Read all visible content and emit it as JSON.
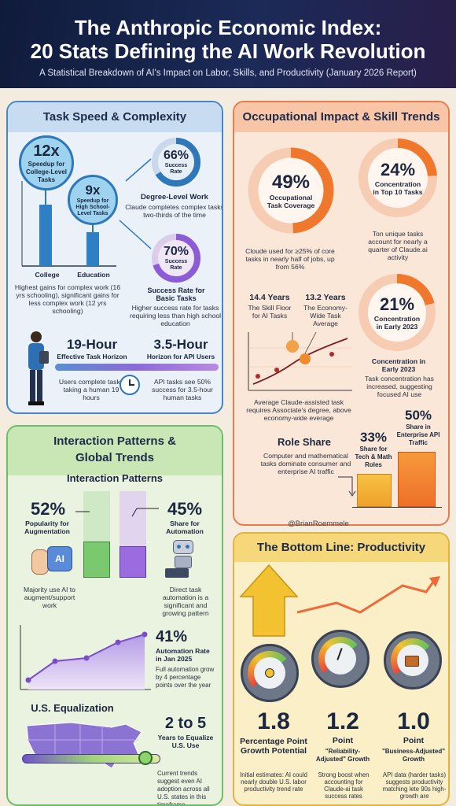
{
  "header": {
    "title_line1": "The Anthropic Economic Index:",
    "title_line2": "20 Stats Defining the AI Work Revolution",
    "subtitle": "A Statistical Breakdown of AI's Impact on Labor, Skills, and Productivity (January 2026 Report)"
  },
  "speed": {
    "title": "Task Speed & Complexity",
    "college_value": "12x",
    "college_label": "Speedup for College-Level Tasks",
    "hs_value": "9x",
    "hs_label": "Speedup for High School-Level Tasks",
    "bar_label_college": "College",
    "bar_label_education": "Education",
    "gains_note": "Highest gains for complex work (16 yrs schooling), significant gains for less complex work (12 yrs schooling)",
    "degree_value": "66%",
    "degree_ring_label": "Success Rate",
    "degree_title": "Degree-Level Work",
    "degree_note": "Claude completes complex tasks two-thirds of the time",
    "basic_value": "70%",
    "basic_ring_label": "Success Rate",
    "basic_title": "Success Rate for Basic Tasks",
    "basic_note": "Higher success rate for tasks requiring less than high school education",
    "horizon_value": "19-Hour",
    "horizon_label": "Effective Task Horizon",
    "horizon_note": "Users complete tasks taking a human 19 hours",
    "api_value": "3.5-Hour",
    "api_label": "Horizon for API Users",
    "api_note": "API tasks see 50% success for 3.5-hour human tasks",
    "degree_level": 0.66,
    "basic_level": 0.7
  },
  "occupational": {
    "title": "Occupational Impact & Skill Trends",
    "coverage_value": "49%",
    "coverage_label": "Occupational Task Coverage",
    "coverage_note": "Cloude used for ≥25% of core tasks in nearly half of jobs, up from 56%",
    "top10_value": "24%",
    "top10_label": "Concentration in Top 10 Tasks",
    "top10_note": "Ton unique tasks account for nearly a quarter of Claude.ai activity",
    "floor_value": "14.4 Years",
    "floor_label": "The Skill Floor for AI Tasks",
    "avg_value": "13.2 Years",
    "avg_label": "The Economy-Wide Task Average",
    "years_note": "Average Claude-assisted task requires Associate's degree, above economy-wide everage",
    "early_value": "21%",
    "early_label": "Concentration in Early 2023",
    "early_sub": "Concentration in Early 2023",
    "early_note": "Task concentration has increased, suggesting focused AI use",
    "role_title": "Role Share",
    "role_note": "Computer and mathematical tasks dominate consumer and enterprise AI traffic",
    "tech_value": "33%",
    "tech_label": "Share for Tech & Math Roles",
    "ent_value": "50%",
    "ent_label": "Share in Enterprise API Traffic",
    "coverage_level": 0.49,
    "top10_level": 0.24,
    "early_level": 0.21
  },
  "watermark": "@BrianRoemmele",
  "interaction": {
    "title_line1": "Interaction Patterns &",
    "title_line2": "Global Trends",
    "sub_title": "Interaction Patterns",
    "aug_value": "52%",
    "aug_label": "Popularity for Augmentation",
    "aug_note": "Majority use AI to augment/support work",
    "auto_value": "45%",
    "auto_label": "Share for Automation",
    "auto_note": "Direct task automation is a significant and growing pattern",
    "ai_badge": "AI",
    "aug_level": 0.52,
    "auto_level": 0.45,
    "rate_value": "41%",
    "rate_label": "Automation Rate in Jan 2025",
    "rate_note": "Full automation grow by 4 percentage points over the year",
    "eq_title": "U.S. Equalization",
    "eq_value": "2 to 5",
    "eq_label": "Years to Equalize U.S. Use",
    "eq_note": "Current trends suggest even AI adoption across all U.S. states in this timeframe"
  },
  "bottom": {
    "title": "The Bottom Line: Productivity",
    "g1_value": "1.8",
    "g1_label": "Percentage Point Growth Potential",
    "g1_note": "Initial estimates: AI could nearly double U.S. labor productivity trend rate",
    "g2_value": "1.2",
    "g2_label": "Point",
    "g2_sub": "\"Reliability-Adjusted\" Growth",
    "g2_note": "Strong boost when accounting for Claude-ai task success rates",
    "g3_value": "1.0",
    "g3_label": "Point",
    "g3_sub": "\"Business-Adjusted\" Growth",
    "g3_note": "API data (harder tasks) suggests productivity matching lete 90s high-growth are"
  },
  "colors": {
    "blue": "#2e77b8",
    "purple": "#8c5bd6",
    "orange": "#f0782c",
    "green": "#7bc96f",
    "gold": "#f2c230"
  }
}
